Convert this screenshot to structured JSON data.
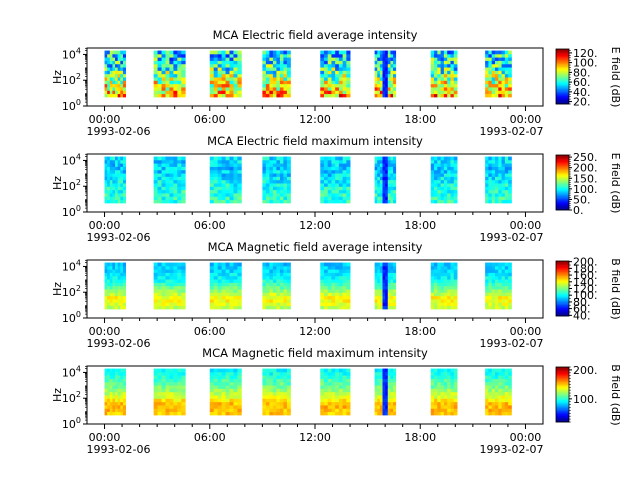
{
  "chart_data": [
    {
      "type": "heatmap",
      "title": "MCA  Electric field average intensity",
      "ylabel": "Hz",
      "yticks": [
        "10^0",
        "10^2",
        "10^4"
      ],
      "ylim_log10": [
        0,
        4.5
      ],
      "xlim_hours": [
        -1,
        25
      ],
      "xticks": [
        "00:00",
        "06:00",
        "12:00",
        "18:00",
        "00:00"
      ],
      "xtick_hours": [
        0,
        6,
        12,
        18,
        24
      ],
      "date_labels": [
        "1993-02-06",
        "1993-02-07"
      ],
      "colorbar_label": "E field (dB)",
      "colorbar_ticks": [
        "20.",
        "40.",
        "60.",
        "80.",
        "100.",
        "120."
      ],
      "colorbar_values": [
        20,
        40,
        60,
        80,
        100,
        120
      ],
      "colorbar_range": [
        15,
        128
      ],
      "coverage_hours": [
        [
          0.0,
          1.2
        ],
        [
          2.8,
          4.6
        ],
        [
          6.0,
          7.8
        ],
        [
          9.0,
          10.6
        ],
        [
          12.3,
          14.0
        ],
        [
          15.4,
          16.6
        ],
        [
          18.6,
          20.1
        ],
        [
          21.7,
          23.2
        ]
      ],
      "freq_log10_range": [
        0.7,
        4.3
      ],
      "profile": {
        "freq_log10": [
          0.8,
          1.8,
          2.7,
          3.5,
          4.3
        ],
        "level": [
          0.72,
          0.58,
          0.45,
          0.38,
          0.35
        ]
      },
      "variability": 0.22
    },
    {
      "type": "heatmap",
      "title": "MCA  Electric field maximum intensity",
      "ylabel": "Hz",
      "yticks": [
        "10^0",
        "10^2",
        "10^4"
      ],
      "ylim_log10": [
        0,
        4.5
      ],
      "xlim_hours": [
        -1,
        25
      ],
      "xticks": [
        "00:00",
        "06:00",
        "12:00",
        "18:00",
        "00:00"
      ],
      "xtick_hours": [
        0,
        6,
        12,
        18,
        24
      ],
      "date_labels": [
        "1993-02-06",
        "1993-02-07"
      ],
      "colorbar_label": "E field (dB)",
      "colorbar_ticks": [
        "0.",
        "50.",
        "100.",
        "150.",
        "200.",
        "250."
      ],
      "colorbar_values": [
        0,
        50,
        100,
        150,
        200,
        250
      ],
      "colorbar_range": [
        0,
        260
      ],
      "coverage_hours": [
        [
          0.0,
          1.2
        ],
        [
          2.8,
          4.6
        ],
        [
          6.0,
          7.8
        ],
        [
          9.0,
          10.6
        ],
        [
          12.3,
          14.0
        ],
        [
          15.4,
          16.6
        ],
        [
          18.6,
          20.1
        ],
        [
          21.7,
          23.2
        ]
      ],
      "freq_log10_range": [
        0.7,
        4.3
      ],
      "profile": {
        "freq_log10": [
          0.8,
          1.8,
          2.7,
          3.5,
          4.3
        ],
        "level": [
          0.42,
          0.4,
          0.35,
          0.32,
          0.36
        ]
      },
      "variability": 0.08
    },
    {
      "type": "heatmap",
      "title": "MCA  Magnetic field average intensity",
      "ylabel": "Hz",
      "yticks": [
        "10^0",
        "10^2",
        "10^4"
      ],
      "ylim_log10": [
        0,
        4.5
      ],
      "xlim_hours": [
        -1,
        25
      ],
      "xticks": [
        "00:00",
        "06:00",
        "12:00",
        "18:00",
        "00:00"
      ],
      "xtick_hours": [
        0,
        6,
        12,
        18,
        24
      ],
      "date_labels": [
        "1993-02-06",
        "1993-02-07"
      ],
      "colorbar_label": "B field (dB)",
      "colorbar_ticks": [
        "40.",
        "60.",
        "80.",
        "100.",
        "120.",
        "140.",
        "160.",
        "180.",
        "200."
      ],
      "colorbar_values": [
        40,
        60,
        80,
        100,
        120,
        140,
        160,
        180,
        200
      ],
      "colorbar_range": [
        38,
        202
      ],
      "coverage_hours": [
        [
          0.0,
          1.2
        ],
        [
          2.8,
          4.6
        ],
        [
          6.0,
          7.8
        ],
        [
          9.0,
          10.6
        ],
        [
          12.3,
          14.0
        ],
        [
          15.4,
          16.6
        ],
        [
          18.6,
          20.1
        ],
        [
          21.7,
          23.2
        ]
      ],
      "freq_log10_range": [
        0.7,
        4.3
      ],
      "profile": {
        "freq_log10": [
          0.8,
          1.5,
          2.2,
          3.0,
          3.8,
          4.3
        ],
        "level": [
          0.56,
          0.64,
          0.5,
          0.38,
          0.33,
          0.32
        ]
      },
      "variability": 0.05
    },
    {
      "type": "heatmap",
      "title": "MCA  Magnetic field maximum intensity",
      "ylabel": "Hz",
      "yticks": [
        "10^0",
        "10^2",
        "10^4"
      ],
      "ylim_log10": [
        0,
        4.5
      ],
      "xlim_hours": [
        -1,
        25
      ],
      "xticks": [
        "00:00",
        "06:00",
        "12:00",
        "18:00",
        "00:00"
      ],
      "xtick_hours": [
        0,
        6,
        12,
        18,
        24
      ],
      "date_labels": [
        "1993-02-06",
        "1993-02-07"
      ],
      "colorbar_label": "B field (dB)",
      "colorbar_ticks": [
        "100.",
        "200."
      ],
      "colorbar_values": [
        100,
        200
      ],
      "colorbar_range": [
        20,
        210
      ],
      "coverage_hours": [
        [
          0.0,
          1.2
        ],
        [
          2.8,
          4.6
        ],
        [
          6.0,
          7.8
        ],
        [
          9.0,
          10.6
        ],
        [
          12.3,
          14.0
        ],
        [
          15.4,
          16.6
        ],
        [
          18.6,
          20.1
        ],
        [
          21.7,
          23.2
        ]
      ],
      "freq_log10_range": [
        0.7,
        4.3
      ],
      "profile": {
        "freq_log10": [
          0.8,
          1.5,
          2.2,
          3.0,
          3.8,
          4.3
        ],
        "level": [
          0.68,
          0.7,
          0.58,
          0.48,
          0.4,
          0.37
        ]
      },
      "variability": 0.05
    }
  ]
}
